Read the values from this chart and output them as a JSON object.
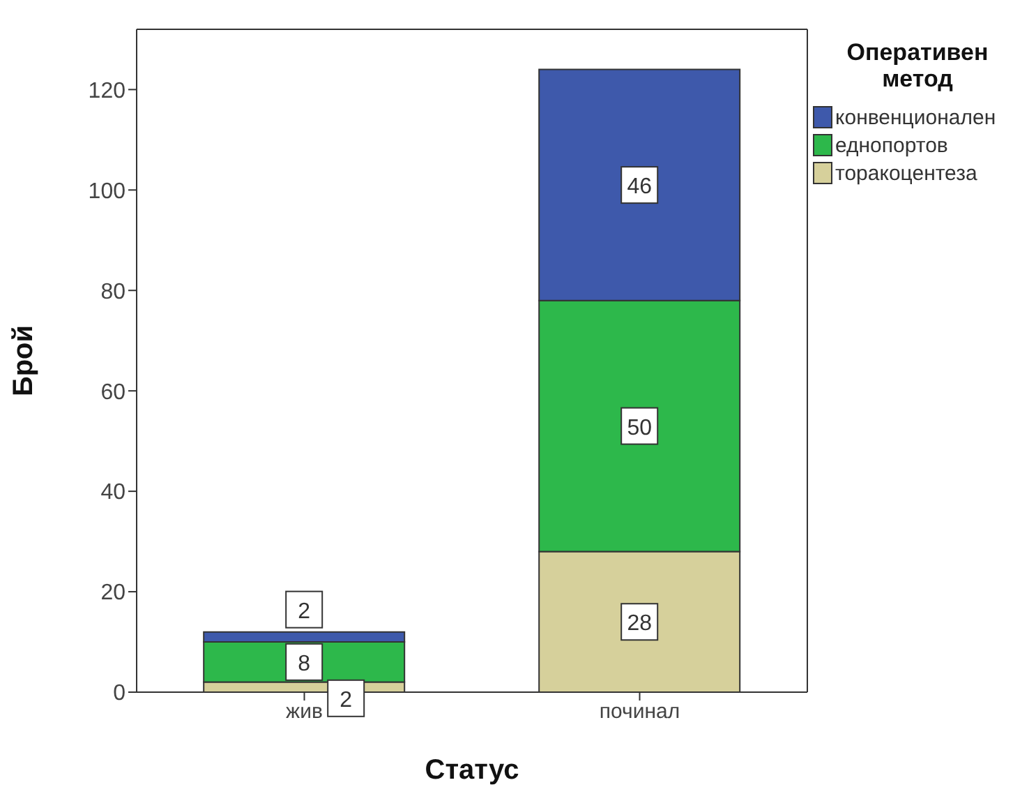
{
  "chart_data": {
    "type": "bar",
    "stacked": true,
    "xlabel": "Статус",
    "ylabel": "Брой",
    "legend_title": "Оперативен метод",
    "legend": "right",
    "data_labels": true,
    "categories": [
      "жив",
      "починал"
    ],
    "ylim": [
      0,
      132
    ],
    "yticks": [
      0,
      20,
      40,
      60,
      80,
      100,
      120
    ],
    "series": [
      {
        "name": "торакоцентеза",
        "color": "#d6d09b",
        "values": [
          2,
          28
        ]
      },
      {
        "name": "еднопортов",
        "color": "#2db84b",
        "values": [
          8,
          50
        ]
      },
      {
        "name": "конвенционален",
        "color": "#3e59ab",
        "values": [
          2,
          46
        ]
      }
    ]
  }
}
